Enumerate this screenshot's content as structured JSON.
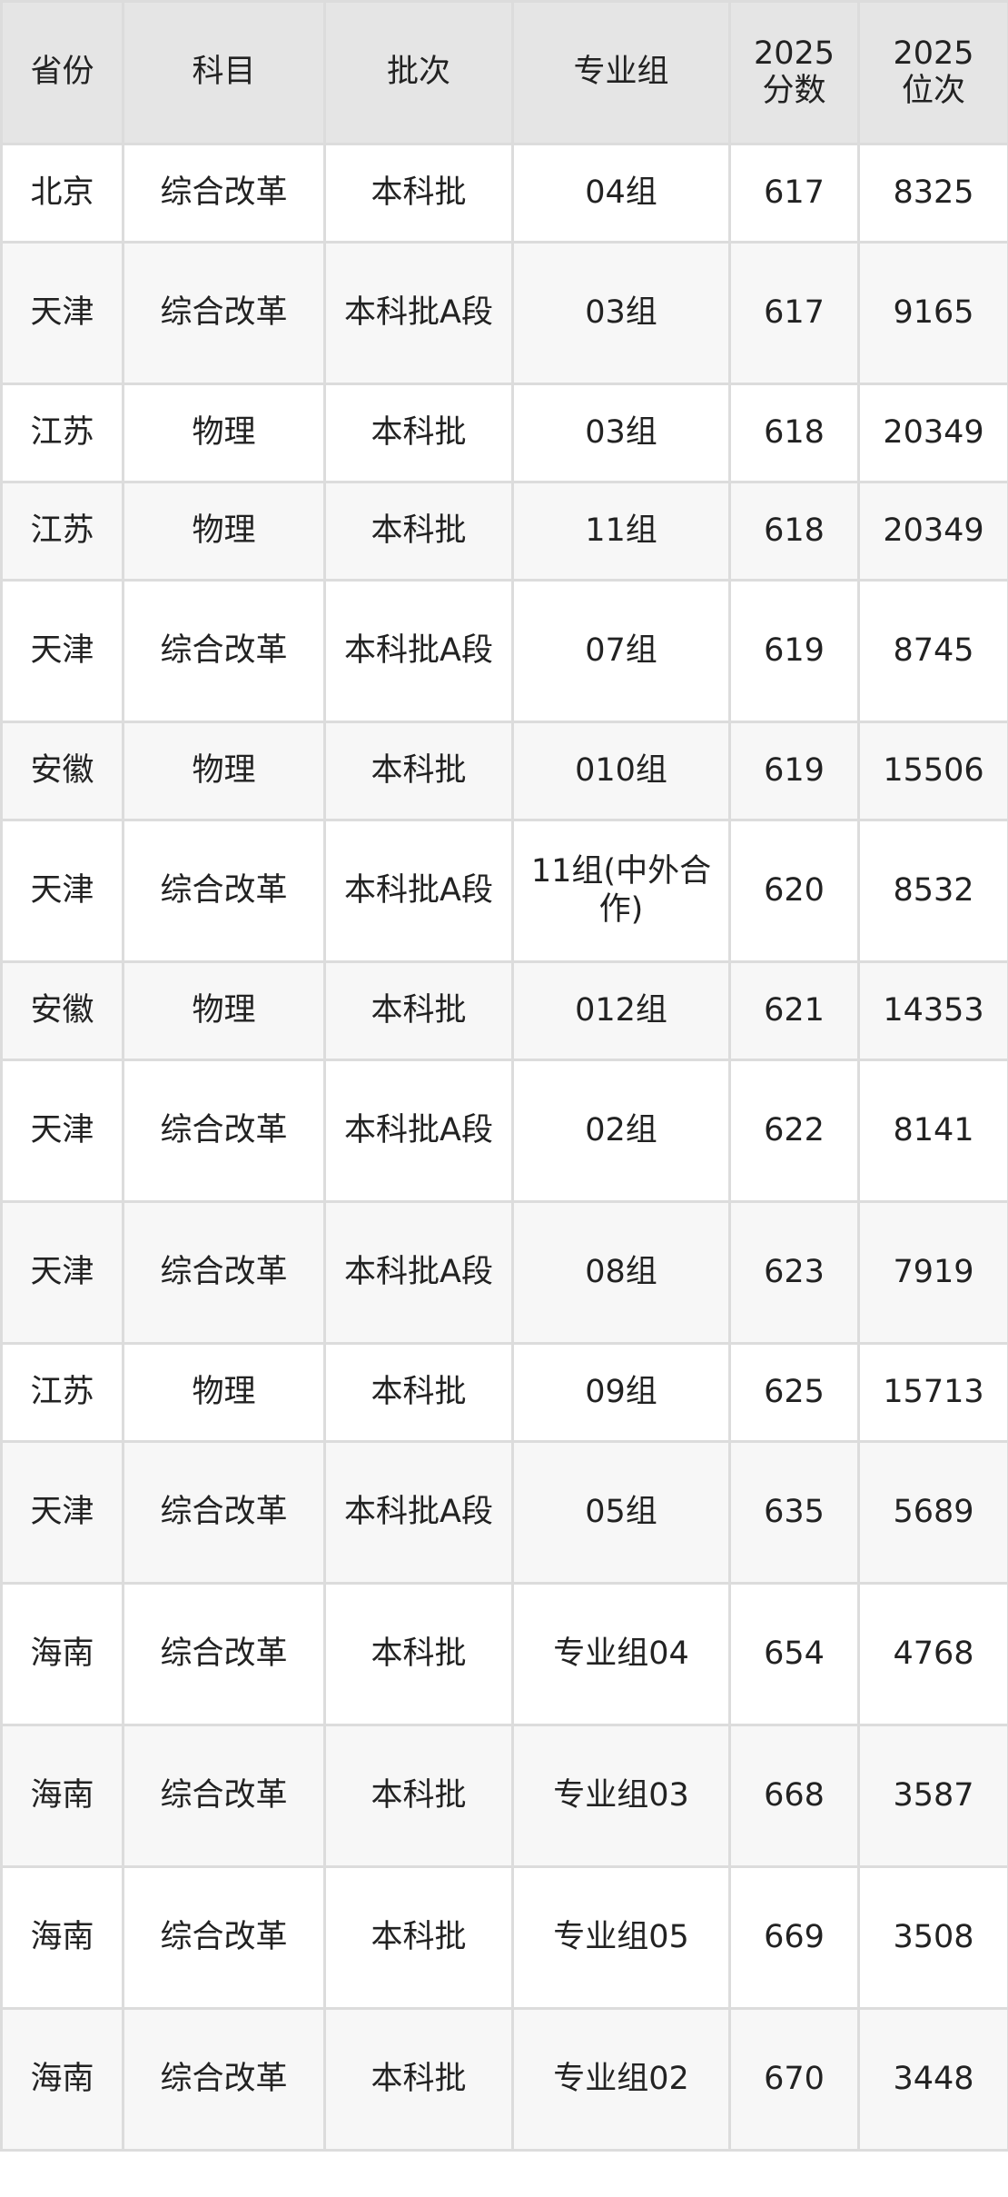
{
  "table": {
    "headers": [
      "省份",
      "科目",
      "批次",
      "专业组",
      "2025\n分数",
      "2025\n位次"
    ],
    "rows": [
      [
        "北京",
        "综合改革",
        "本科批",
        "04组",
        "617",
        "8325"
      ],
      [
        "天津",
        "综合改革",
        "本科批A段",
        "03组",
        "617",
        "9165"
      ],
      [
        "江苏",
        "物理",
        "本科批",
        "03组",
        "618",
        "20349"
      ],
      [
        "江苏",
        "物理",
        "本科批",
        "11组",
        "618",
        "20349"
      ],
      [
        "天津",
        "综合改革",
        "本科批A段",
        "07组",
        "619",
        "8745"
      ],
      [
        "安徽",
        "物理",
        "本科批",
        "010组",
        "619",
        "15506"
      ],
      [
        "天津",
        "综合改革",
        "本科批A段",
        "11组(中外合作)",
        "620",
        "8532"
      ],
      [
        "安徽",
        "物理",
        "本科批",
        "012组",
        "621",
        "14353"
      ],
      [
        "天津",
        "综合改革",
        "本科批A段",
        "02组",
        "622",
        "8141"
      ],
      [
        "天津",
        "综合改革",
        "本科批A段",
        "08组",
        "623",
        "7919"
      ],
      [
        "江苏",
        "物理",
        "本科批",
        "09组",
        "625",
        "15713"
      ],
      [
        "天津",
        "综合改革",
        "本科批A段",
        "05组",
        "635",
        "5689"
      ],
      [
        "海南",
        "综合改革",
        "本科批",
        "专业组04",
        "654",
        "4768"
      ],
      [
        "海南",
        "综合改革",
        "本科批",
        "专业组03",
        "668",
        "3587"
      ],
      [
        "海南",
        "综合改革",
        "本科批",
        "专业组05",
        "669",
        "3508"
      ],
      [
        "海南",
        "综合改革",
        "本科批",
        "专业组02",
        "670",
        "3448"
      ]
    ]
  }
}
